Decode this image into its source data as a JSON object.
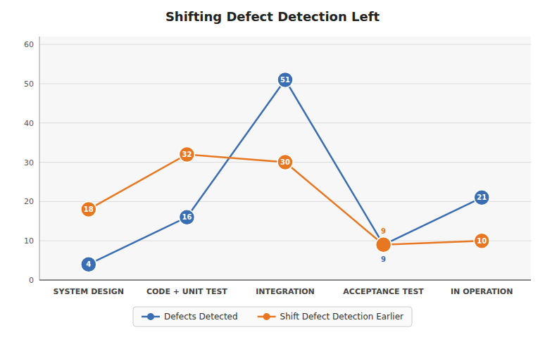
{
  "chart_data": {
    "type": "line",
    "title": "Shifting Defect Detection Left",
    "categories": [
      "SYSTEM DESIGN",
      "CODE + UNIT TEST",
      "INTEGRATION",
      "ACCEPTANCE TEST",
      "IN OPERATION"
    ],
    "series": [
      {
        "name": "Defects Detected",
        "color": "#3B6DB3",
        "values": [
          4,
          16,
          51,
          9,
          21
        ]
      },
      {
        "name": "Shift Defect Detection Earlier",
        "color": "#E87722",
        "values": [
          18,
          32,
          30,
          9,
          10
        ]
      }
    ],
    "ylim": [
      0,
      62
    ],
    "yticks": [
      0,
      10,
      20,
      30,
      40,
      50,
      60
    ],
    "grid": true,
    "legend": "bottom",
    "data_labels": true,
    "marker": "circle"
  }
}
